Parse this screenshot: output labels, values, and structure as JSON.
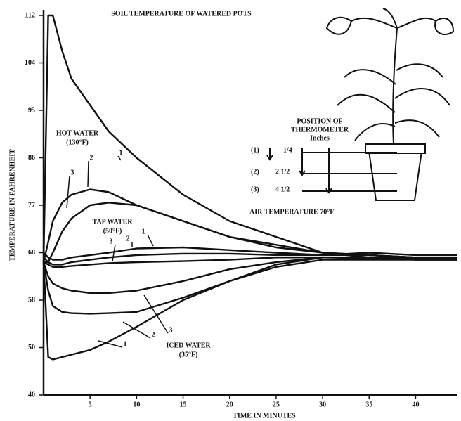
{
  "chart_data": {
    "type": "line",
    "title": "SOIL TEMPERATURE OF WATERED POTS",
    "x_label": "TIME IN MINUTES",
    "y_label": "TEMPERATURE IN FAHRENHEIT",
    "xlim": [
      0,
      44.5
    ],
    "xticks": [
      5,
      10,
      15,
      20,
      25,
      30,
      35,
      40
    ],
    "ylim": [
      40,
      112
    ],
    "yticks": [
      40,
      50,
      58,
      68,
      77,
      86,
      95,
      104,
      112
    ],
    "x": [
      0,
      0.5,
      1,
      2,
      3,
      5,
      7,
      10,
      15,
      20,
      25,
      30,
      35,
      40,
      44.5
    ],
    "series": [
      {
        "name": "1",
        "color": "#111111",
        "values": [
          66,
          112,
          112,
          106,
          101,
          96,
          91,
          86,
          79,
          74,
          71,
          68,
          67.5,
          67,
          67
        ]
      },
      {
        "name": "2",
        "color": "#111111",
        "values": [
          66,
          70,
          74,
          77.5,
          79,
          80,
          79.5,
          77,
          74,
          71,
          69.5,
          68,
          67.5,
          67,
          67
        ]
      },
      {
        "name": "3",
        "color": "#111111",
        "values": [
          66,
          66,
          68,
          72,
          74.5,
          77,
          77.5,
          77,
          74,
          71,
          69,
          68,
          67,
          67,
          67
        ]
      },
      {
        "name": "1",
        "color": "#111111",
        "values": [
          68,
          67,
          66.5,
          66.5,
          67,
          67.5,
          68,
          68.8,
          69,
          68.5,
          68,
          67.5,
          68,
          67.5,
          67.5
        ]
      },
      {
        "name": "2",
        "color": "#111111",
        "values": [
          67,
          66,
          65.5,
          65.5,
          66,
          66.5,
          67,
          67.5,
          67.8,
          67.8,
          67.5,
          67.5,
          67.5,
          67,
          67
        ]
      },
      {
        "name": "3",
        "color": "#111111",
        "values": [
          66,
          65.5,
          65,
          65,
          65.2,
          65.5,
          65.8,
          66,
          66.2,
          66.5,
          67,
          67,
          66.8,
          66.8,
          66.8
        ]
      },
      {
        "name": "1",
        "color": "#111111",
        "values": [
          66,
          48,
          47.5,
          48,
          48.5,
          49.5,
          51,
          53.5,
          58,
          62,
          65.5,
          67,
          67,
          66.5,
          66.5
        ]
      },
      {
        "name": "2",
        "color": "#111111",
        "values": [
          66,
          60,
          57,
          56,
          55.8,
          55.7,
          55.8,
          56,
          58.5,
          62,
          65,
          66.5,
          66.5,
          66.5,
          66.5
        ]
      },
      {
        "name": "3",
        "color": "#111111",
        "values": [
          66,
          63,
          61.5,
          60.5,
          60,
          59.5,
          59.5,
          60,
          62,
          64.5,
          66,
          67,
          67,
          66.5,
          66.5
        ]
      }
    ],
    "annotations": [
      "HOT WATER",
      "(130°F)",
      "TAP WATER",
      "(50°F)",
      "ICED WATER",
      "(35°F)"
    ],
    "inset": {
      "title": [
        "POSITION OF",
        "THERMOMETER",
        "Inches"
      ],
      "positions": [
        [
          "(1)",
          "1/4"
        ],
        [
          "(2)",
          "2 1/2"
        ],
        [
          "(3)",
          "4 1/2"
        ]
      ],
      "note": "AIR TEMPERATURE 70°F"
    }
  }
}
